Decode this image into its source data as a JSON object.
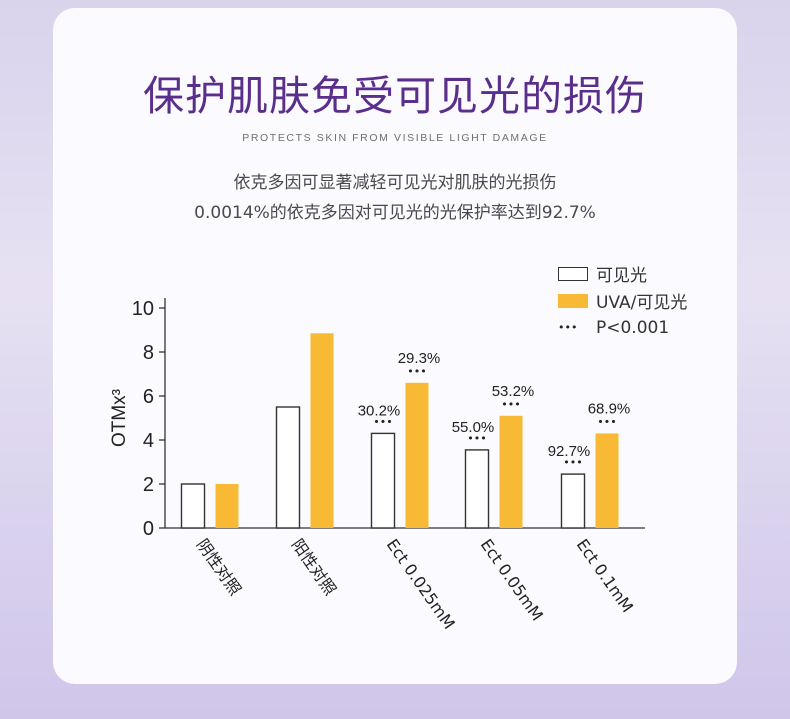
{
  "header": {
    "title": "保护肌肤免受可见光的损伤",
    "subtitle": "PROTECTS SKIN FROM VISIBLE LIGHT DAMAGE",
    "desc_line1": "依克多因可显著减轻可见光对肌肤的光损伤",
    "desc_line2": "0.0014%的依克多因对可见光的光保护率达到92.7%"
  },
  "legend": {
    "visible_label": "可见光",
    "uva_label": "UVA/可见光",
    "sig_dots": "•••",
    "sig_label": "P<0.001"
  },
  "colors": {
    "title": "#5a2f8c",
    "uva_bar": "#f8b934",
    "visible_bar_fill": "#ffffff",
    "bar_stroke": "#333333"
  },
  "chart_data": {
    "type": "bar",
    "ylabel": "OTMx³",
    "ylim": [
      0,
      10
    ],
    "yticks": [
      0,
      2,
      4,
      6,
      8,
      10
    ],
    "categories": [
      "阴性对照",
      "阳性对照",
      "Ect 0.025mM",
      "Ect 0.05mM",
      "Ect 0.1mM"
    ],
    "series": [
      {
        "name": "可见光",
        "values": [
          2.0,
          5.5,
          4.3,
          3.55,
          2.45
        ],
        "labels": [
          "",
          "",
          "30.2%",
          "55.0%",
          "92.7%"
        ],
        "significance": [
          false,
          false,
          true,
          true,
          true
        ]
      },
      {
        "name": "UVA/可见光",
        "values": [
          2.0,
          8.85,
          6.6,
          5.1,
          4.3
        ],
        "labels": [
          "",
          "",
          "29.3%",
          "53.2%",
          "68.9%"
        ],
        "significance": [
          false,
          false,
          true,
          true,
          true
        ]
      }
    ],
    "significance_marker": "•••",
    "legend_position": "top-right",
    "grid": false
  }
}
